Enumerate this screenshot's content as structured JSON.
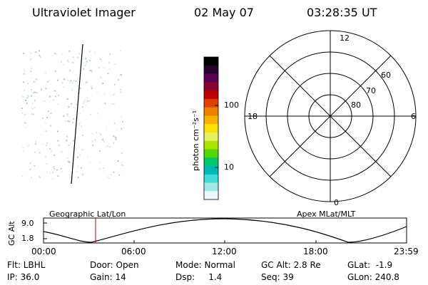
{
  "header": {
    "instrument": "Ultraviolet Imager",
    "date": "02 May 07",
    "time": "03:28:35 UT"
  },
  "colorbar": {
    "label": "photon cm⁻²s⁻¹",
    "ticks": [
      "100",
      "10"
    ],
    "colors": [
      "#000000",
      "#2a0030",
      "#5a0055",
      "#8a0030",
      "#c00000",
      "#e04000",
      "#f08000",
      "#f8b000",
      "#f8e000",
      "#e8f060",
      "#a8e800",
      "#50d800",
      "#00c870",
      "#00b8b8",
      "#40d8d8",
      "#a0e8e8",
      "#e8f8f8"
    ]
  },
  "polar": {
    "lat_labels": [
      "60",
      "70",
      "80"
    ],
    "mlt_labels": {
      "top": "12",
      "left": "18",
      "right": "6",
      "bottom": "0"
    }
  },
  "timeline": {
    "ylabel": "GC Alt",
    "yticks": [
      "9.0",
      "1.8"
    ],
    "left_title": "Geographic Lat/Lon",
    "right_title": "Apex MLat/MLT",
    "xticks": [
      "00:00",
      "06:00",
      "12:00",
      "18:00",
      "23:59"
    ]
  },
  "info": {
    "flt": "Flt: LBHL",
    "door": "Door: Open",
    "mode": "Mode: Normal",
    "gc_alt": "GC Alt: 2.8 Re",
    "glat": "GLat:  -1.9",
    "ip": "IP: 36.0",
    "gain": "Gain: 14",
    "dsp": "Dsp:     1.4",
    "seq": "Seq: 39",
    "glon": "GLon: 240.8"
  }
}
